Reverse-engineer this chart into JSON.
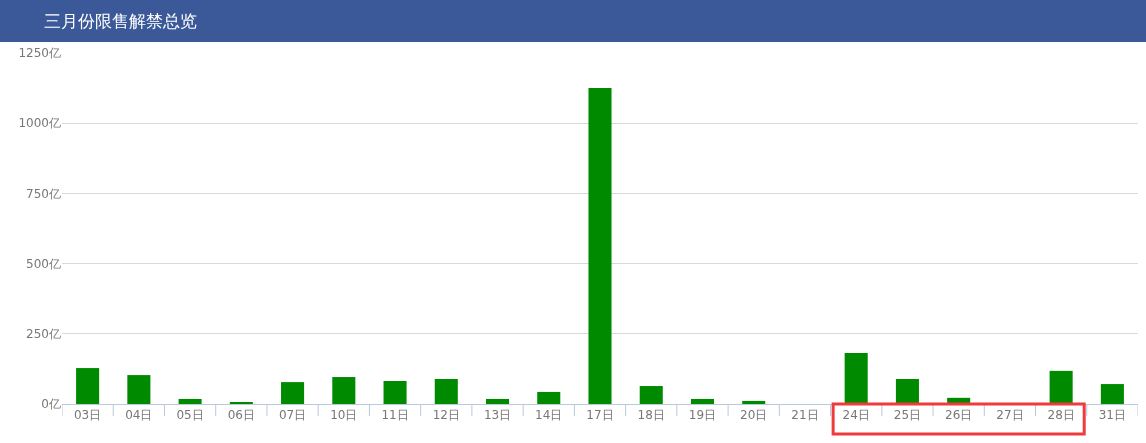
{
  "chart_data": {
    "type": "bar",
    "title": "三月份限售解禁总览",
    "categories": [
      "03日",
      "04日",
      "05日",
      "06日",
      "07日",
      "10日",
      "11日",
      "12日",
      "13日",
      "14日",
      "17日",
      "18日",
      "19日",
      "20日",
      "21日",
      "24日",
      "25日",
      "26日",
      "27日",
      "28日",
      "31日"
    ],
    "values": [
      128,
      103,
      18,
      4,
      78,
      96,
      82,
      89,
      18,
      43,
      1125,
      64,
      18,
      11,
      0,
      182,
      89,
      22,
      0,
      118,
      71
    ],
    "color": "#008a00",
    "ylim": [
      0,
      1250
    ],
    "yticks": [
      {
        "value": 0,
        "label": "0亿"
      },
      {
        "value": 250,
        "label": "250亿"
      },
      {
        "value": 500,
        "label": "500亿"
      },
      {
        "value": 750,
        "label": "750亿"
      },
      {
        "value": 1000,
        "label": "1000亿"
      },
      {
        "value": 1250,
        "label": "1250亿"
      }
    ],
    "grid": "y"
  }
}
